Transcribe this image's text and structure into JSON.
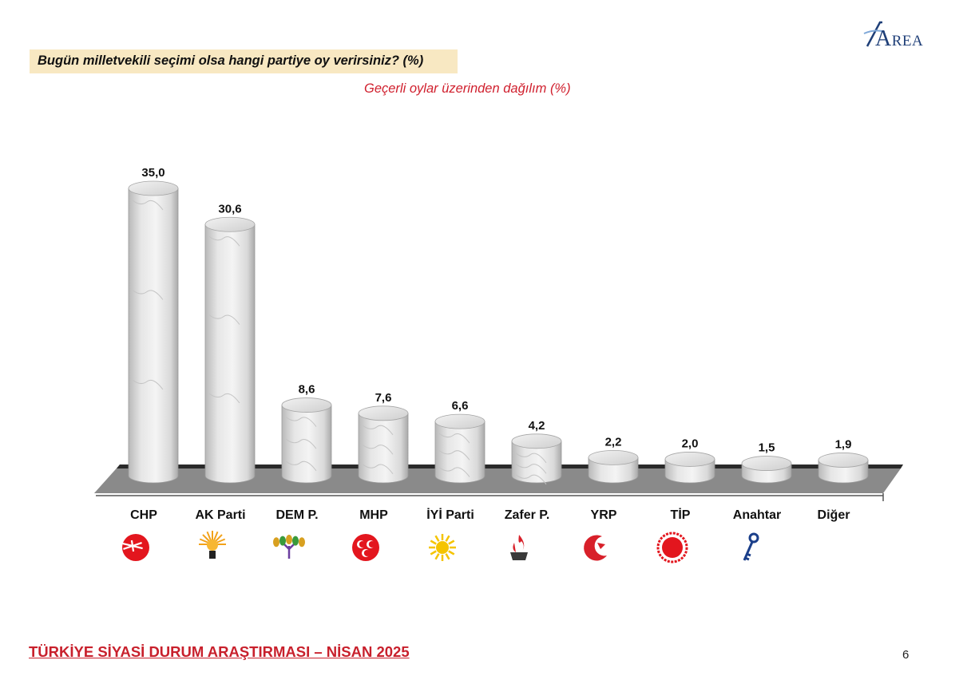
{
  "header": {
    "question": "Bugün milletvekili seçimi olsa hangi partiye oy verirsiniz? (%)",
    "subtitle": "Geçerli oylar üzerinden dağılım (%)",
    "logo_text_big": "A",
    "logo_text_small": "REA"
  },
  "footer": {
    "title": "TÜRKİYE SİYASİ DURUM ARAŞTIRMASI – NİSAN 2025",
    "page_number": "6"
  },
  "chart_data": {
    "type": "bar",
    "title": "",
    "xlabel": "",
    "ylabel": "",
    "ylim": [
      0,
      35
    ],
    "grid": false,
    "legend": "none",
    "categories": [
      "CHP",
      "AK Parti",
      "DEM P.",
      "MHP",
      "İYİ Parti",
      "Zafer P.",
      "YRP",
      "TİP",
      "Anahtar",
      "Diğer"
    ],
    "values": [
      35.0,
      30.6,
      8.6,
      7.6,
      6.6,
      4.2,
      2.2,
      2.0,
      1.5,
      1.9
    ],
    "data_labels": [
      "35,0",
      "30,6",
      "8,6",
      "7,6",
      "6,6",
      "4,2",
      "2,2",
      "2,0",
      "1,5",
      "1,9"
    ],
    "party_icons": [
      "chp-icon",
      "akp-icon",
      "dem-icon",
      "mhp-icon",
      "iyi-icon",
      "zafer-icon",
      "yrp-icon",
      "tip-icon",
      "anahtar-icon",
      ""
    ]
  }
}
